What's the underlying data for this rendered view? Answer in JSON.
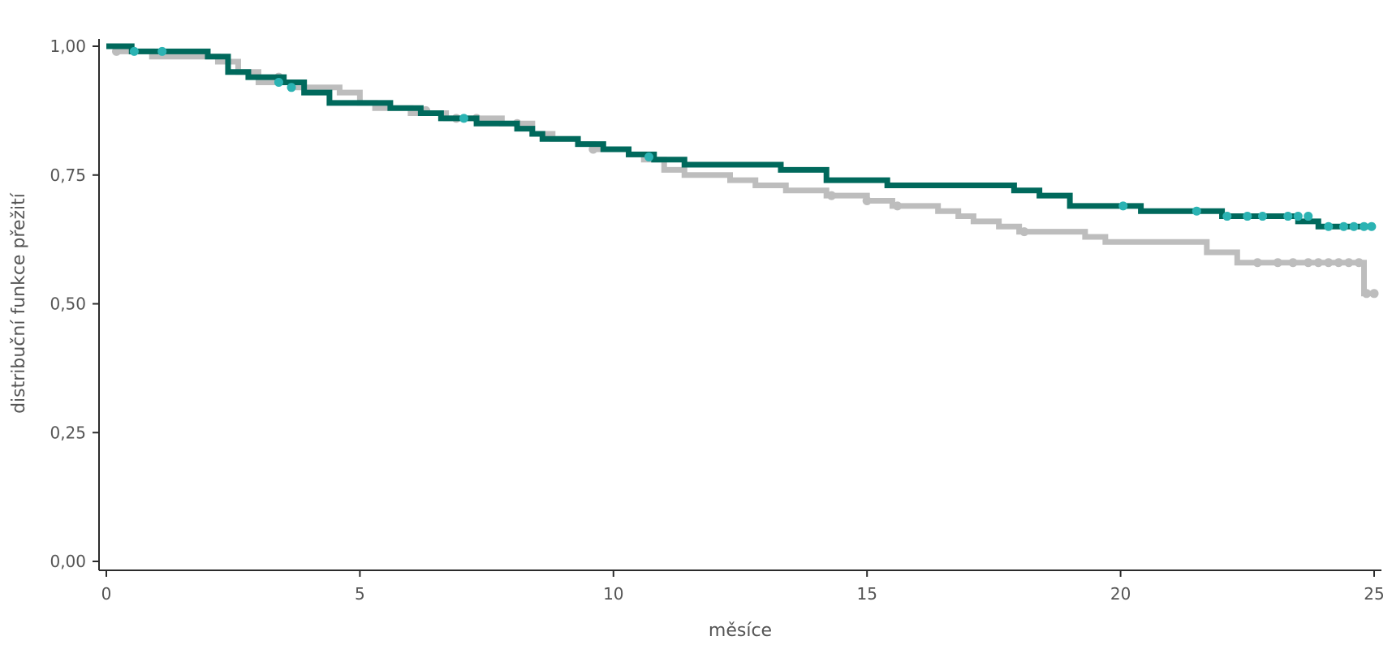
{
  "chart_data": {
    "type": "line",
    "title": "",
    "xlabel": "měsíce",
    "ylabel": "distribuční funkce přežití",
    "xlim": [
      0,
      25
    ],
    "ylim": [
      0,
      1
    ],
    "x_ticks": [
      0,
      5,
      10,
      15,
      20,
      25
    ],
    "x_tick_labels": [
      "0",
      "5",
      "10",
      "15",
      "20",
      "25"
    ],
    "y_ticks": [
      0,
      0.25,
      0.5,
      0.75,
      1.0
    ],
    "y_tick_labels": [
      "0,00",
      "0,25",
      "0,50",
      "0,75",
      "1,00"
    ],
    "grid": false,
    "legend": "none",
    "series": [
      {
        "color": "#00695c",
        "censor_color": "#2bb3b3",
        "steps": [
          [
            0,
            1.0
          ],
          [
            0.5,
            0.99
          ],
          [
            2.0,
            0.98
          ],
          [
            2.4,
            0.95
          ],
          [
            2.8,
            0.94
          ],
          [
            3.5,
            0.93
          ],
          [
            3.9,
            0.91
          ],
          [
            4.4,
            0.89
          ],
          [
            5.6,
            0.88
          ],
          [
            6.2,
            0.87
          ],
          [
            6.6,
            0.86
          ],
          [
            7.3,
            0.85
          ],
          [
            8.1,
            0.84
          ],
          [
            8.4,
            0.83
          ],
          [
            8.6,
            0.82
          ],
          [
            9.3,
            0.81
          ],
          [
            9.8,
            0.8
          ],
          [
            10.3,
            0.79
          ],
          [
            10.8,
            0.78
          ],
          [
            11.4,
            0.77
          ],
          [
            13.3,
            0.76
          ],
          [
            14.2,
            0.74
          ],
          [
            15.4,
            0.73
          ],
          [
            17.9,
            0.72
          ],
          [
            18.4,
            0.71
          ],
          [
            19.0,
            0.69
          ],
          [
            20.4,
            0.68
          ],
          [
            22.0,
            0.67
          ],
          [
            23.5,
            0.66
          ],
          [
            23.9,
            0.65
          ],
          [
            25.0,
            0.65
          ]
        ],
        "censored": [
          [
            0.55,
            0.99
          ],
          [
            1.1,
            0.99
          ],
          [
            3.4,
            0.93
          ],
          [
            3.65,
            0.92
          ],
          [
            7.05,
            0.86
          ],
          [
            10.7,
            0.785
          ],
          [
            20.05,
            0.69
          ],
          [
            21.5,
            0.68
          ],
          [
            22.1,
            0.67
          ],
          [
            22.5,
            0.67
          ],
          [
            22.8,
            0.67
          ],
          [
            23.3,
            0.67
          ],
          [
            23.5,
            0.67
          ],
          [
            23.7,
            0.67
          ],
          [
            24.1,
            0.65
          ],
          [
            24.4,
            0.65
          ],
          [
            24.6,
            0.65
          ],
          [
            24.8,
            0.65
          ],
          [
            24.95,
            0.65
          ]
        ]
      },
      {
        "color": "#bdbdbd",
        "censor_color": "#bdbdbd",
        "steps": [
          [
            0,
            1.0
          ],
          [
            0.3,
            0.99
          ],
          [
            0.9,
            0.98
          ],
          [
            2.2,
            0.97
          ],
          [
            2.6,
            0.95
          ],
          [
            3.0,
            0.93
          ],
          [
            3.7,
            0.92
          ],
          [
            4.6,
            0.91
          ],
          [
            5.0,
            0.89
          ],
          [
            5.3,
            0.88
          ],
          [
            6.0,
            0.87
          ],
          [
            6.7,
            0.86
          ],
          [
            7.8,
            0.85
          ],
          [
            8.4,
            0.83
          ],
          [
            8.8,
            0.82
          ],
          [
            9.3,
            0.81
          ],
          [
            9.6,
            0.8
          ],
          [
            10.3,
            0.79
          ],
          [
            10.6,
            0.78
          ],
          [
            11.0,
            0.76
          ],
          [
            11.4,
            0.75
          ],
          [
            12.3,
            0.74
          ],
          [
            12.8,
            0.73
          ],
          [
            13.4,
            0.72
          ],
          [
            14.2,
            0.71
          ],
          [
            15.0,
            0.7
          ],
          [
            15.5,
            0.69
          ],
          [
            16.4,
            0.68
          ],
          [
            16.8,
            0.67
          ],
          [
            17.1,
            0.66
          ],
          [
            17.6,
            0.65
          ],
          [
            18.0,
            0.64
          ],
          [
            19.3,
            0.63
          ],
          [
            19.7,
            0.62
          ],
          [
            21.7,
            0.6
          ],
          [
            22.3,
            0.58
          ],
          [
            24.8,
            0.52
          ],
          [
            25.0,
            0.52
          ]
        ],
        "censored": [
          [
            0.2,
            0.99
          ],
          [
            3.4,
            0.94
          ],
          [
            6.3,
            0.875
          ],
          [
            6.9,
            0.86
          ],
          [
            7.3,
            0.86
          ],
          [
            8.1,
            0.85
          ],
          [
            9.6,
            0.8
          ],
          [
            14.3,
            0.71
          ],
          [
            15.0,
            0.7
          ],
          [
            15.6,
            0.69
          ],
          [
            18.1,
            0.64
          ],
          [
            22.7,
            0.58
          ],
          [
            23.1,
            0.58
          ],
          [
            23.4,
            0.58
          ],
          [
            23.7,
            0.58
          ],
          [
            23.9,
            0.58
          ],
          [
            24.1,
            0.58
          ],
          [
            24.3,
            0.58
          ],
          [
            24.5,
            0.58
          ],
          [
            24.7,
            0.58
          ],
          [
            24.85,
            0.52
          ],
          [
            25.0,
            0.52
          ]
        ]
      }
    ]
  }
}
